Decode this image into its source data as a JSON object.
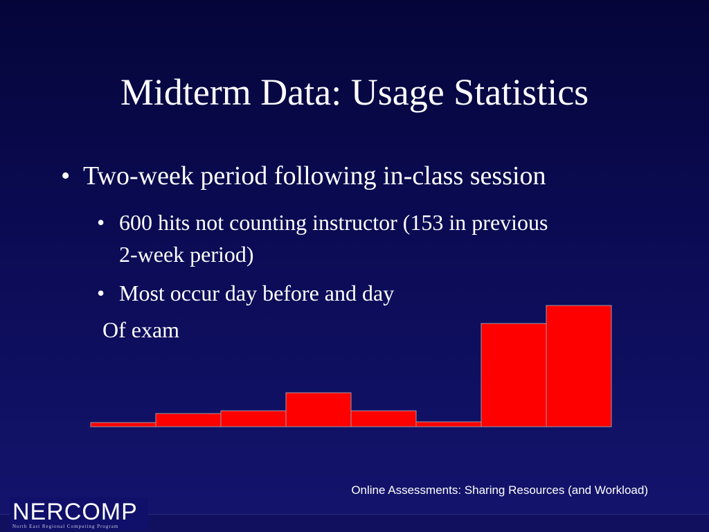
{
  "title": "Midterm Data: Usage Statistics",
  "bullets": [
    {
      "text": "Two-week period following in-class session",
      "sub": [
        "600 hits not counting instructor (153 in previous 2-week period)",
        "Most occur day before and day"
      ]
    }
  ],
  "continuation": "Of exam",
  "footer": "Online Assessments: Sharing Resources (and Workload)",
  "logo": {
    "name": "NERCOMP",
    "tagline": "North East Regional Computing Program"
  },
  "chart_data": {
    "type": "bar",
    "categories": [
      null,
      null,
      null,
      null,
      null,
      null,
      null,
      null
    ],
    "values": [
      6,
      19,
      23,
      49,
      23,
      7,
      149,
      175
    ],
    "color": "#ff0000",
    "ylim": [
      0,
      175
    ]
  }
}
